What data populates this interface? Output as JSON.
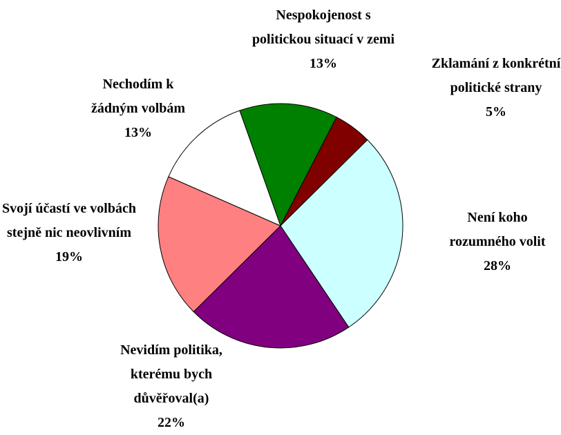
{
  "chart_data": {
    "type": "pie",
    "categories": [
      "Nespokojenost s politickou situací v zemi",
      "Zklamání z konkrétní politické strany",
      "Není koho rozumného volit",
      "Nevidím politika, kterému bych důvěřoval(a)",
      "Svojí účastí ve volbách stejně nic neovlivním",
      "Nechodím k žádným volbám"
    ],
    "values": [
      13,
      5,
      28,
      22,
      19,
      13
    ],
    "value_labels": [
      "13%",
      "5%",
      "28%",
      "22%",
      "19%",
      "13%"
    ],
    "colors": [
      "#008000",
      "#800000",
      "#ccffff",
      "#800080",
      "#ff8080",
      "#ffffff"
    ]
  }
}
